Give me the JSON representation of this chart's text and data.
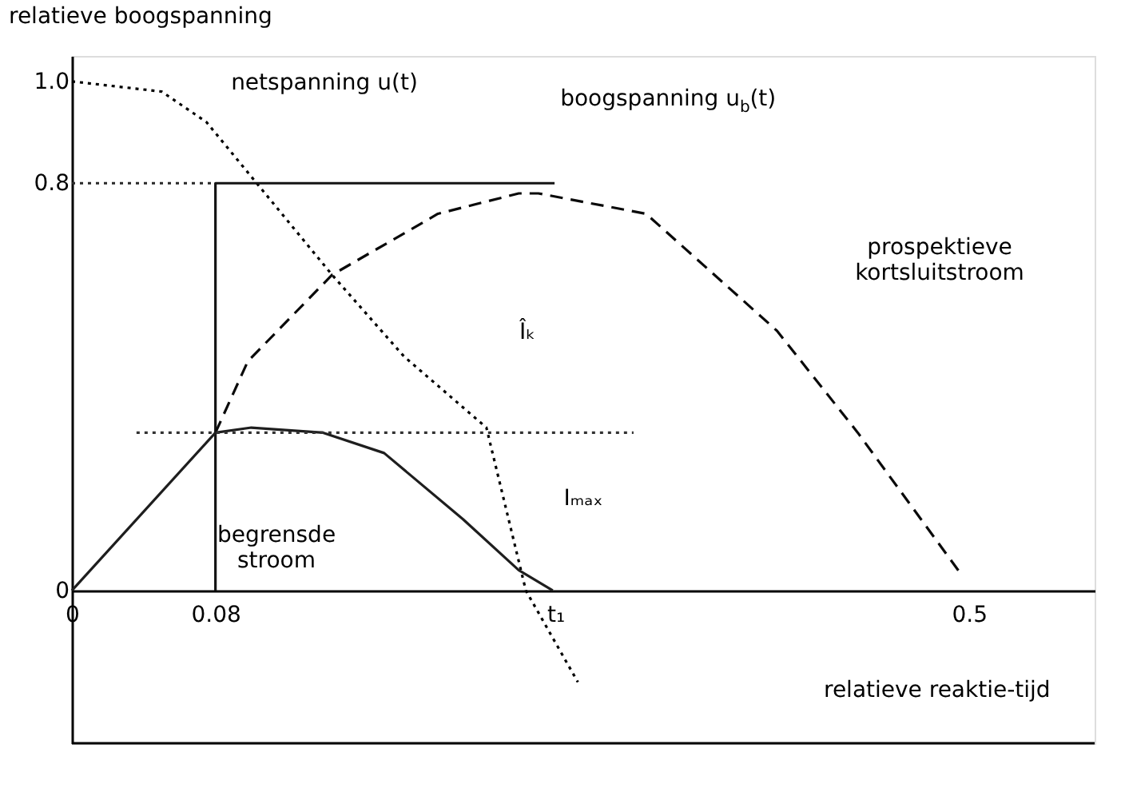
{
  "chart_data": {
    "type": "line",
    "ylabel": "relatieve boogspanning",
    "xlabel": "relatieve reaktie-tijd",
    "xlim": [
      0,
      0.57
    ],
    "ylim": [
      -0.3,
      1.05
    ],
    "xticks": [
      0,
      0.08,
      0.5
    ],
    "yticks": [
      0,
      0.8,
      {
        "value": 1.0,
        "label": "1.0"
      }
    ],
    "grid": false,
    "marker": "none",
    "series": [
      {
        "color": "#000000",
        "line_style": "dotted",
        "x": [
          0,
          0.05,
          0.075,
          0.103,
          0.145,
          0.185,
          0.231,
          0.253,
          0.282
        ],
        "values": [
          1.0,
          0.98,
          0.92,
          0.8,
          0.62,
          0.46,
          0.32,
          0.0,
          -0.18
        ]
      },
      {
        "color": "#141414",
        "line_style": "solid",
        "x": [
          0.08,
          0.08,
          0.269
        ],
        "values": [
          0,
          0.8,
          0.8
        ]
      },
      {
        "color": "#0a0a0a",
        "line_style": "dashed",
        "x": [
          0.08,
          0.098,
          0.145,
          0.204,
          0.249,
          0.26,
          0.32,
          0.393,
          0.438,
          0.496
        ],
        "values": [
          0.31,
          0.45,
          0.62,
          0.74,
          0.78,
          0.78,
          0.74,
          0.51,
          0.31,
          0.03
        ]
      },
      {
        "color": "#1e1e1e",
        "line_style": "solid",
        "x": [
          0,
          0.08,
          0.1,
          0.14,
          0.174,
          0.218,
          0.249,
          0.268
        ],
        "values": [
          0,
          0.31,
          0.32,
          0.31,
          0.27,
          0.14,
          0.04,
          0
        ]
      },
      {
        "color": "#282828",
        "line_style": "dotted",
        "x": [
          0,
          0.08
        ],
        "values": [
          0.8,
          0.8
        ]
      },
      {
        "color": "#323232",
        "line_style": "dotted",
        "x": [
          0.036,
          0.313
        ],
        "values": [
          0.31,
          0.31
        ]
      }
    ],
    "annotations": [
      "netspanning u(t)",
      "boogspanning u$_{b}$(t)",
      "prospektieve\nkortsluitstroom",
      "begrensde\nstroom",
      "Îₖ",
      "Iₘₐₓ",
      "t₁"
    ]
  }
}
